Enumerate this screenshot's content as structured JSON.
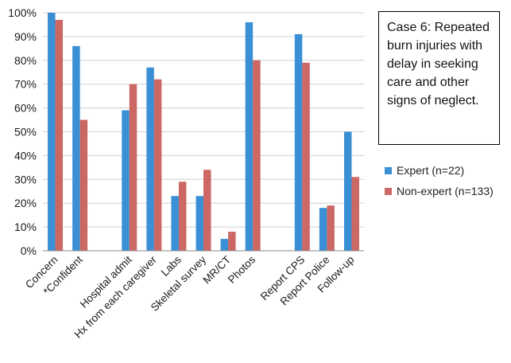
{
  "colors": {
    "expert": "#3b8fd4",
    "nonexpert": "#cc6764",
    "grid": "#d0d0d0"
  },
  "annotation": {
    "text": "Case 6: Repeated burn injuries with delay in seeking care and other signs of neglect."
  },
  "chart_data": {
    "type": "bar",
    "categories": [
      "Concern",
      "*Confident",
      "",
      "Hospital admit",
      "Hx from each caregiver",
      "Labs",
      "Skeletal survey",
      "MR/CT",
      "Photos",
      "",
      "Report CPS",
      "Report Police",
      "Follow-up"
    ],
    "series": [
      {
        "name": "Expert (n=22)",
        "values": [
          100,
          86,
          null,
          59,
          77,
          23,
          23,
          5,
          96,
          null,
          91,
          18,
          50
        ]
      },
      {
        "name": "Non-expert (n=133)",
        "values": [
          97,
          55,
          null,
          70,
          72,
          29,
          34,
          8,
          80,
          null,
          79,
          19,
          31
        ]
      }
    ],
    "y_ticks": [
      "0%",
      "10%",
      "20%",
      "30%",
      "40%",
      "50%",
      "60%",
      "70%",
      "80%",
      "90%",
      "100%"
    ],
    "ylim": [
      0,
      100
    ],
    "grid": true,
    "legend_position": "right"
  }
}
